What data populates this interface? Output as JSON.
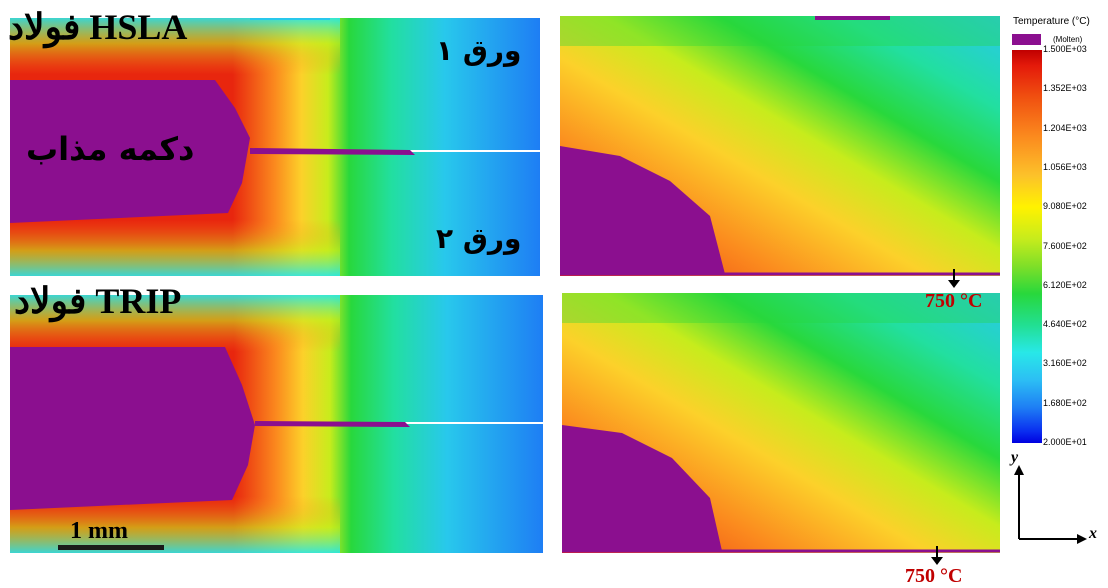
{
  "labels": {
    "hsla_steel": "فولاد HSLA",
    "trip_steel": "فولاد TRIP",
    "sheet1": "ورق ۱",
    "sheet2": "ورق ۲",
    "molten_nugget": "دکمه مذاب",
    "scale_bar": "1 mm",
    "temp_mark_top": "750 °C",
    "temp_mark_bottom": "750 °C"
  },
  "legend": {
    "title": "Temperature (°C)",
    "molten": "(Molten)",
    "ticks": [
      "1.500E+03",
      "1.352E+03",
      "1.204E+03",
      "1.056E+03",
      "9.080E+02",
      "7.600E+02",
      "6.120E+02",
      "4.640E+02",
      "3.160E+02",
      "1.680E+02",
      "2.000E+01"
    ]
  },
  "axes": {
    "x": "x",
    "y": "y"
  },
  "colors": {
    "molten": "#8b0f8f",
    "hot": "#e8260e",
    "orange": "#fb8a1e",
    "yellow": "#fff200",
    "green": "#28d83c",
    "cyan": "#28e8e8",
    "blue": "#1e7ef4",
    "annotation": "#c00000"
  }
}
